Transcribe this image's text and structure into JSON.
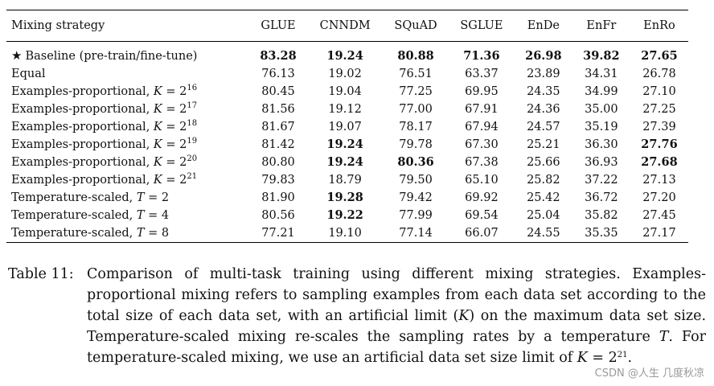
{
  "table": {
    "columns": [
      "Mixing strategy",
      "GLUE",
      "CNNDM",
      "SQuAD",
      "SGLUE",
      "EnDe",
      "EnFr",
      "EnRo"
    ],
    "rows": [
      {
        "star": "★",
        "prefix": "Baseline (pre-train/fine-tune)",
        "var": "",
        "op": "",
        "exp": "",
        "values": [
          "83.28",
          "19.24",
          "80.88",
          "71.36",
          "26.98",
          "39.82",
          "27.65"
        ],
        "bold": [
          true,
          true,
          true,
          true,
          true,
          true,
          true
        ]
      },
      {
        "star": "",
        "prefix": "Equal",
        "var": "",
        "op": "",
        "exp": "",
        "values": [
          "76.13",
          "19.02",
          "76.51",
          "63.37",
          "23.89",
          "34.31",
          "26.78"
        ],
        "bold": [
          false,
          false,
          false,
          false,
          false,
          false,
          false
        ]
      },
      {
        "star": "",
        "prefix": "Examples-proportional, ",
        "var": "K",
        "op": " = 2",
        "exp": "16",
        "values": [
          "80.45",
          "19.04",
          "77.25",
          "69.95",
          "24.35",
          "34.99",
          "27.10"
        ],
        "bold": [
          false,
          false,
          false,
          false,
          false,
          false,
          false
        ]
      },
      {
        "star": "",
        "prefix": "Examples-proportional, ",
        "var": "K",
        "op": " = 2",
        "exp": "17",
        "values": [
          "81.56",
          "19.12",
          "77.00",
          "67.91",
          "24.36",
          "35.00",
          "27.25"
        ],
        "bold": [
          false,
          false,
          false,
          false,
          false,
          false,
          false
        ]
      },
      {
        "star": "",
        "prefix": "Examples-proportional, ",
        "var": "K",
        "op": " = 2",
        "exp": "18",
        "values": [
          "81.67",
          "19.07",
          "78.17",
          "67.94",
          "24.57",
          "35.19",
          "27.39"
        ],
        "bold": [
          false,
          false,
          false,
          false,
          false,
          false,
          false
        ]
      },
      {
        "star": "",
        "prefix": "Examples-proportional, ",
        "var": "K",
        "op": " = 2",
        "exp": "19",
        "values": [
          "81.42",
          "19.24",
          "79.78",
          "67.30",
          "25.21",
          "36.30",
          "27.76"
        ],
        "bold": [
          false,
          true,
          false,
          false,
          false,
          false,
          true
        ]
      },
      {
        "star": "",
        "prefix": "Examples-proportional, ",
        "var": "K",
        "op": " = 2",
        "exp": "20",
        "values": [
          "80.80",
          "19.24",
          "80.36",
          "67.38",
          "25.66",
          "36.93",
          "27.68"
        ],
        "bold": [
          false,
          true,
          true,
          false,
          false,
          false,
          true
        ]
      },
      {
        "star": "",
        "prefix": "Examples-proportional, ",
        "var": "K",
        "op": " = 2",
        "exp": "21",
        "values": [
          "79.83",
          "18.79",
          "79.50",
          "65.10",
          "25.82",
          "37.22",
          "27.13"
        ],
        "bold": [
          false,
          false,
          false,
          false,
          false,
          false,
          false
        ]
      },
      {
        "star": "",
        "prefix": "Temperature-scaled, ",
        "var": "T",
        "op": " = 2",
        "exp": "",
        "values": [
          "81.90",
          "19.28",
          "79.42",
          "69.92",
          "25.42",
          "36.72",
          "27.20"
        ],
        "bold": [
          false,
          true,
          false,
          false,
          false,
          false,
          false
        ]
      },
      {
        "star": "",
        "prefix": "Temperature-scaled, ",
        "var": "T",
        "op": " = 4",
        "exp": "",
        "values": [
          "80.56",
          "19.22",
          "77.99",
          "69.54",
          "25.04",
          "35.82",
          "27.45"
        ],
        "bold": [
          false,
          true,
          false,
          false,
          false,
          false,
          false
        ]
      },
      {
        "star": "",
        "prefix": "Temperature-scaled, ",
        "var": "T",
        "op": " = 8",
        "exp": "",
        "values": [
          "77.21",
          "19.10",
          "77.14",
          "66.07",
          "24.55",
          "35.35",
          "27.17"
        ],
        "bold": [
          false,
          false,
          false,
          false,
          false,
          false,
          false
        ]
      }
    ]
  },
  "caption": {
    "label": "Table 11:",
    "text_1": "Comparison of multi-task training using different mixing strategies. Examples-proportional mixing refers to sampling examples from each data set according to the total size of each data set, with an artificial limit (",
    "var_k": "K",
    "text_2": ") on the maximum data set size. Temperature-scaled mixing re-scales the sampling rates by a temperature ",
    "var_t": "T",
    "text_3": ". For temperature-scaled mixing, we use an artificial data set size limit of ",
    "var_k2": "K",
    "text_4": " = 2",
    "exp": "21",
    "text_5": "."
  },
  "watermark": "CSDN @人生 几度秋凉"
}
